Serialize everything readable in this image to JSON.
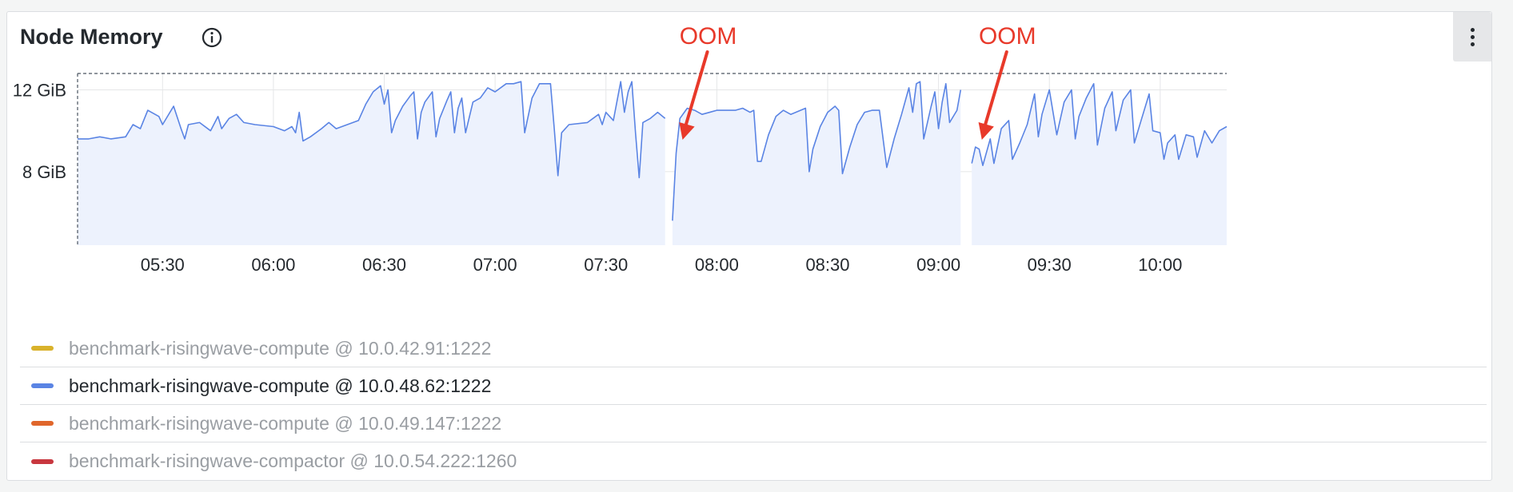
{
  "panel": {
    "title": "Node Memory",
    "info_icon": "info-circle-icon",
    "menu_icon": "kebab-menu-icon"
  },
  "colors": {
    "series_line": "#5a84e4",
    "series_fill": "#edf2fd",
    "annotation": "#e8392a",
    "grid": "#e5e6e8",
    "axis_text": "#24292e"
  },
  "annotations": [
    {
      "text": "OOM",
      "time": "07:49"
    },
    {
      "text": "OOM",
      "time": "09:10"
    }
  ],
  "legend": [
    {
      "label": "benchmark-risingwave-compute @ 10.0.42.91:1222",
      "color": "#d9b22b",
      "active": false
    },
    {
      "label": "benchmark-risingwave-compute @ 10.0.48.62:1222",
      "color": "#5a84e4",
      "active": true
    },
    {
      "label": "benchmark-risingwave-compute @ 10.0.49.147:1222",
      "color": "#e0662b",
      "active": false
    },
    {
      "label": "benchmark-risingwave-compactor @ 10.0.54.222:1260",
      "color": "#c8373f",
      "active": false
    }
  ],
  "chart_data": {
    "type": "area",
    "x_ticks": [
      "05:30",
      "06:00",
      "06:30",
      "07:00",
      "07:30",
      "08:00",
      "08:30",
      "09:00",
      "09:30",
      "10:00"
    ],
    "y_ticks": [
      {
        "value": 12,
        "label": "12 GiB"
      },
      {
        "value": 8,
        "label": "8 GiB"
      }
    ],
    "ylim": [
      4.4,
      12.8
    ],
    "xlim": [
      "05:07",
      "10:18"
    ],
    "grid": true,
    "legend_position": "bottom",
    "series": [
      {
        "name": "benchmark-risingwave-compute @ 10.0.48.62:1222",
        "segments": [
          [
            [
              "05:07",
              9.6
            ],
            [
              "05:10",
              9.6
            ],
            [
              "05:13",
              9.7
            ],
            [
              "05:16",
              9.6
            ],
            [
              "05:20",
              9.7
            ],
            [
              "05:22",
              10.3
            ],
            [
              "05:24",
              10.1
            ],
            [
              "05:26",
              11.0
            ],
            [
              "05:29",
              10.7
            ],
            [
              "05:30",
              10.3
            ],
            [
              "05:32",
              10.9
            ],
            [
              "05:33",
              11.2
            ],
            [
              "05:35",
              10.1
            ],
            [
              "05:36",
              9.6
            ],
            [
              "05:37",
              10.3
            ],
            [
              "05:40",
              10.4
            ],
            [
              "05:43",
              10.0
            ],
            [
              "05:45",
              10.7
            ],
            [
              "05:46",
              10.1
            ],
            [
              "05:48",
              10.6
            ],
            [
              "05:50",
              10.8
            ],
            [
              "05:52",
              10.4
            ],
            [
              "05:55",
              10.3
            ],
            [
              "06:00",
              10.2
            ],
            [
              "06:03",
              10.0
            ],
            [
              "06:05",
              10.2
            ],
            [
              "06:06",
              9.9
            ],
            [
              "06:07",
              10.9
            ],
            [
              "06:08",
              9.5
            ],
            [
              "06:10",
              9.7
            ],
            [
              "06:13",
              10.1
            ],
            [
              "06:15",
              10.4
            ],
            [
              "06:17",
              10.1
            ],
            [
              "06:20",
              10.3
            ],
            [
              "06:23",
              10.5
            ],
            [
              "06:25",
              11.3
            ],
            [
              "06:27",
              11.9
            ],
            [
              "06:29",
              12.2
            ],
            [
              "06:30",
              11.3
            ],
            [
              "06:31",
              12.0
            ],
            [
              "06:32",
              9.9
            ],
            [
              "06:33",
              10.5
            ],
            [
              "06:35",
              11.2
            ],
            [
              "06:37",
              11.7
            ],
            [
              "06:38",
              11.9
            ],
            [
              "06:39",
              9.6
            ],
            [
              "06:40",
              10.9
            ],
            [
              "06:41",
              11.4
            ],
            [
              "06:43",
              11.9
            ],
            [
              "06:44",
              9.7
            ],
            [
              "06:45",
              10.6
            ],
            [
              "06:47",
              11.5
            ],
            [
              "06:48",
              11.9
            ],
            [
              "06:49",
              9.9
            ],
            [
              "06:50",
              11.1
            ],
            [
              "06:51",
              11.6
            ],
            [
              "06:52",
              9.9
            ],
            [
              "06:54",
              11.4
            ],
            [
              "06:56",
              11.6
            ],
            [
              "06:58",
              12.1
            ],
            [
              "07:00",
              11.9
            ],
            [
              "07:03",
              12.3
            ],
            [
              "07:05",
              12.3
            ],
            [
              "07:07",
              12.4
            ],
            [
              "07:08",
              9.9
            ],
            [
              "07:10",
              11.6
            ],
            [
              "07:12",
              12.3
            ],
            [
              "07:15",
              12.3
            ],
            [
              "07:16",
              10.1
            ],
            [
              "07:17",
              7.8
            ],
            [
              "07:18",
              9.9
            ],
            [
              "07:20",
              10.3
            ],
            [
              "07:25",
              10.4
            ],
            [
              "07:28",
              10.8
            ],
            [
              "07:29",
              10.3
            ],
            [
              "07:30",
              10.9
            ],
            [
              "07:32",
              10.5
            ],
            [
              "07:34",
              12.4
            ],
            [
              "07:35",
              10.9
            ],
            [
              "07:36",
              11.9
            ],
            [
              "07:37",
              12.4
            ],
            [
              "07:38",
              9.9
            ],
            [
              "07:39",
              7.7
            ],
            [
              "07:40",
              10.4
            ],
            [
              "07:42",
              10.6
            ],
            [
              "07:44",
              10.9
            ],
            [
              "07:46",
              10.6
            ]
          ],
          [
            [
              "07:48",
              5.6
            ],
            [
              "07:49",
              8.9
            ],
            [
              "07:50",
              10.6
            ],
            [
              "07:52",
              11.1
            ],
            [
              "07:54",
              11.0
            ],
            [
              "07:56",
              10.8
            ],
            [
              "08:00",
              11.0
            ],
            [
              "08:05",
              11.0
            ],
            [
              "08:07",
              11.1
            ],
            [
              "08:09",
              10.9
            ],
            [
              "08:10",
              11.0
            ],
            [
              "08:11",
              8.5
            ],
            [
              "08:12",
              8.5
            ],
            [
              "08:14",
              9.8
            ],
            [
              "08:16",
              10.7
            ],
            [
              "08:18",
              11.0
            ],
            [
              "08:20",
              10.8
            ],
            [
              "08:24",
              11.1
            ],
            [
              "08:25",
              8.0
            ],
            [
              "08:26",
              9.1
            ],
            [
              "08:28",
              10.2
            ],
            [
              "08:30",
              10.9
            ],
            [
              "08:32",
              11.2
            ],
            [
              "08:33",
              11.0
            ],
            [
              "08:34",
              7.9
            ],
            [
              "08:36",
              9.2
            ],
            [
              "08:38",
              10.3
            ],
            [
              "08:40",
              10.9
            ],
            [
              "08:42",
              11.0
            ],
            [
              "08:44",
              11.0
            ],
            [
              "08:46",
              8.2
            ],
            [
              "08:48",
              9.6
            ],
            [
              "08:50",
              10.8
            ],
            [
              "08:52",
              12.1
            ],
            [
              "08:53",
              10.9
            ],
            [
              "08:54",
              12.3
            ],
            [
              "08:55",
              12.4
            ],
            [
              "08:56",
              9.6
            ],
            [
              "08:58",
              11.2
            ],
            [
              "08:59",
              11.9
            ],
            [
              "09:00",
              10.1
            ],
            [
              "09:01",
              11.4
            ],
            [
              "09:02",
              12.3
            ],
            [
              "09:03",
              10.4
            ],
            [
              "09:05",
              11.0
            ],
            [
              "09:06",
              12.0
            ]
          ],
          [
            [
              "09:09",
              8.4
            ],
            [
              "09:10",
              9.2
            ],
            [
              "09:11",
              9.1
            ],
            [
              "09:12",
              8.3
            ],
            [
              "09:14",
              9.6
            ],
            [
              "09:15",
              8.4
            ],
            [
              "09:17",
              10.1
            ],
            [
              "09:19",
              10.5
            ],
            [
              "09:20",
              8.6
            ],
            [
              "09:22",
              9.4
            ],
            [
              "09:24",
              10.3
            ],
            [
              "09:26",
              11.8
            ],
            [
              "09:27",
              9.7
            ],
            [
              "09:28",
              10.8
            ],
            [
              "09:30",
              12.0
            ],
            [
              "09:32",
              9.8
            ],
            [
              "09:34",
              11.4
            ],
            [
              "09:36",
              12.0
            ],
            [
              "09:37",
              9.6
            ],
            [
              "09:38",
              10.7
            ],
            [
              "09:40",
              11.6
            ],
            [
              "09:42",
              12.3
            ],
            [
              "09:43",
              9.3
            ],
            [
              "09:45",
              11.1
            ],
            [
              "09:47",
              11.9
            ],
            [
              "09:48",
              10.0
            ],
            [
              "09:50",
              11.5
            ],
            [
              "09:52",
              12.0
            ],
            [
              "09:53",
              9.4
            ],
            [
              "09:55",
              10.6
            ],
            [
              "09:57",
              11.8
            ],
            [
              "09:58",
              10.0
            ],
            [
              "10:00",
              9.9
            ],
            [
              "10:01",
              8.6
            ],
            [
              "10:02",
              9.4
            ],
            [
              "10:04",
              9.8
            ],
            [
              "10:05",
              8.6
            ],
            [
              "10:07",
              9.8
            ],
            [
              "10:09",
              9.7
            ],
            [
              "10:10",
              8.7
            ],
            [
              "10:12",
              10.0
            ],
            [
              "10:14",
              9.4
            ],
            [
              "10:16",
              10.0
            ],
            [
              "10:18",
              10.2
            ]
          ]
        ]
      }
    ]
  }
}
